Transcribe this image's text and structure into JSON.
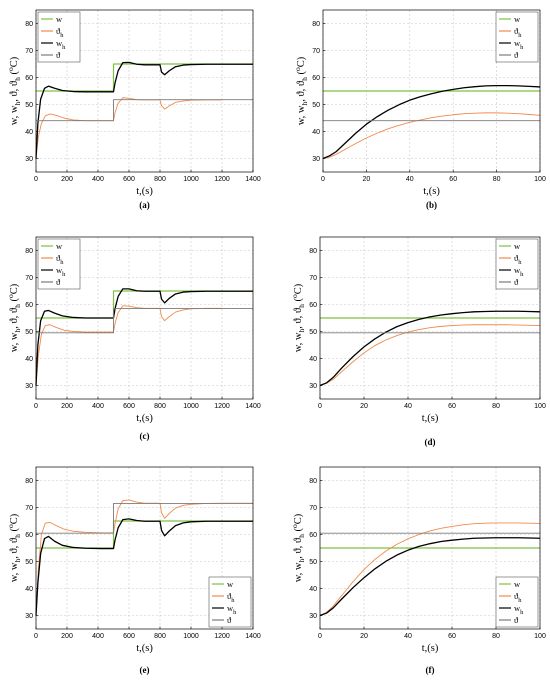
{
  "colors": {
    "w": "#7dc242",
    "theta_h": "#f08a4b",
    "w_h": "#000000",
    "theta": "#7a7a7a",
    "grid": "#c8c8c8"
  },
  "legend_labels": [
    "w",
    "ϑ",
    "w",
    "ϑ"
  ],
  "legend_subscripts": [
    "",
    "h",
    "h",
    ""
  ],
  "ylabel_parts": [
    "w, w",
    "h",
    ", ϑ, ϑ",
    "h",
    " (",
    "o",
    "C)"
  ],
  "chart_data": [
    {
      "id": "a",
      "caption": "(a)",
      "type": "line",
      "xlabel": "t,(s)",
      "xlim": [
        0,
        1400
      ],
      "ylim": [
        25,
        85
      ],
      "xticks": [
        0,
        200,
        400,
        600,
        800,
        1000,
        1200,
        1400
      ],
      "yticks": [
        30,
        40,
        50,
        60,
        70,
        80
      ],
      "legend": "top-left",
      "series": [
        {
          "key": "w",
          "x": [
            0,
            500,
            500,
            1400
          ],
          "y": [
            55,
            55,
            65,
            65
          ]
        },
        {
          "key": "theta_h",
          "x": [
            0,
            15,
            35,
            60,
            90,
            130,
            180,
            240,
            320,
            420,
            500,
            510,
            530,
            560,
            600,
            650,
            700,
            800,
            810,
            830,
            860,
            900,
            950,
            1000,
            1100,
            1200
          ],
          "y": [
            30,
            38,
            43,
            45.8,
            46.5,
            46,
            45,
            44.3,
            44,
            44,
            44,
            47,
            50.5,
            52.5,
            52.3,
            51.8,
            51.7,
            51.7,
            49.5,
            48.3,
            49.5,
            50.8,
            51.3,
            51.6,
            51.7,
            51.7
          ]
        },
        {
          "key": "w_h",
          "x": [
            0,
            12,
            30,
            55,
            80,
            120,
            170,
            240,
            320,
            420,
            500,
            510,
            530,
            560,
            600,
            650,
            700,
            800,
            810,
            830,
            860,
            900,
            950,
            1000,
            1100,
            1200,
            1400
          ],
          "y": [
            30,
            43,
            52,
            56,
            56.8,
            56,
            55.2,
            54.8,
            54.7,
            54.7,
            54.7,
            58,
            62.5,
            65.5,
            65.6,
            64.9,
            64.7,
            64.7,
            62,
            61,
            62.5,
            64,
            64.6,
            64.8,
            64.9,
            64.9,
            64.9
          ]
        },
        {
          "key": "theta",
          "x": [
            0,
            500,
            500,
            1400
          ],
          "y": [
            44,
            44,
            51.8,
            51.8
          ]
        }
      ]
    },
    {
      "id": "b",
      "caption": "(b)",
      "type": "line",
      "xlabel": "t,(s)",
      "xlim": [
        0,
        100
      ],
      "ylim": [
        25,
        85
      ],
      "xticks": [
        0,
        20,
        40,
        60,
        80,
        100
      ],
      "yticks": [
        30,
        40,
        50,
        60,
        70,
        80
      ],
      "legend": "top-right",
      "series": [
        {
          "key": "w",
          "x": [
            0,
            100
          ],
          "y": [
            55,
            55
          ]
        },
        {
          "key": "theta_h",
          "x": [
            0,
            3,
            6,
            10,
            15,
            20,
            25,
            30,
            35,
            40,
            45,
            50,
            55,
            60,
            65,
            70,
            75,
            80,
            85,
            90,
            95,
            100
          ],
          "y": [
            30,
            30.5,
            31.5,
            33.3,
            35.5,
            37.6,
            39.4,
            41,
            42.3,
            43.4,
            44.3,
            45.1,
            45.7,
            46.2,
            46.6,
            46.8,
            46.9,
            46.9,
            46.8,
            46.6,
            46.3,
            46
          ]
        },
        {
          "key": "w_h",
          "x": [
            0,
            3,
            6,
            10,
            15,
            20,
            25,
            30,
            35,
            40,
            45,
            50,
            55,
            60,
            65,
            70,
            75,
            80,
            85,
            90,
            95,
            100
          ],
          "y": [
            30,
            31,
            32.5,
            35.5,
            39.3,
            42.7,
            45.5,
            47.9,
            49.9,
            51.6,
            52.9,
            54,
            54.9,
            55.6,
            56.2,
            56.6,
            56.9,
            57,
            57,
            56.9,
            56.7,
            56.5
          ]
        },
        {
          "key": "theta",
          "x": [
            0,
            100
          ],
          "y": [
            44,
            44
          ]
        }
      ]
    },
    {
      "id": "c",
      "caption": "(c)",
      "type": "line",
      "xlabel": "t,(s)",
      "xlim": [
        0,
        1400
      ],
      "ylim": [
        25,
        85
      ],
      "xticks": [
        0,
        200,
        400,
        600,
        800,
        1000,
        1200,
        1400
      ],
      "yticks": [
        30,
        40,
        50,
        60,
        70,
        80
      ],
      "legend": "top-left",
      "series": [
        {
          "key": "w",
          "x": [
            0,
            500,
            500,
            1400
          ],
          "y": [
            55,
            55,
            65,
            65
          ]
        },
        {
          "key": "theta_h",
          "x": [
            0,
            15,
            35,
            60,
            90,
            130,
            180,
            240,
            320,
            420,
            500,
            510,
            530,
            560,
            600,
            650,
            700,
            800,
            810,
            830,
            860,
            900,
            950,
            1000,
            1100,
            1200
          ],
          "y": [
            30,
            41,
            49,
            52.2,
            52.5,
            51.5,
            50.5,
            50,
            49.8,
            49.8,
            49.8,
            53,
            57,
            59.5,
            59.4,
            58.8,
            58.6,
            58.6,
            55.5,
            54,
            55.5,
            57.2,
            58,
            58.4,
            58.6,
            58.6
          ]
        },
        {
          "key": "w_h",
          "x": [
            0,
            12,
            30,
            55,
            80,
            120,
            170,
            240,
            320,
            420,
            500,
            510,
            530,
            560,
            600,
            650,
            700,
            800,
            810,
            830,
            860,
            900,
            950,
            1000,
            1100,
            1200,
            1400
          ],
          "y": [
            30,
            45,
            54,
            57.5,
            57.8,
            56.8,
            55.8,
            55.2,
            55,
            55,
            55,
            58.5,
            63,
            65.8,
            65.8,
            65.1,
            64.9,
            64.9,
            62,
            60.6,
            62.3,
            63.9,
            64.6,
            64.8,
            64.9,
            64.9,
            64.9
          ]
        },
        {
          "key": "theta",
          "x": [
            0,
            500,
            500,
            1400
          ],
          "y": [
            49.5,
            49.5,
            58.5,
            58.5
          ]
        }
      ]
    },
    {
      "id": "d",
      "caption": "(d)",
      "type": "line",
      "xlabel": "t,(s)",
      "xlim": [
        0,
        100
      ],
      "ylim": [
        25,
        85
      ],
      "xticks": [
        0,
        20,
        40,
        60,
        80,
        100
      ],
      "yticks": [
        30,
        40,
        50,
        60,
        70,
        80
      ],
      "legend": "top-right",
      "series": [
        {
          "key": "w",
          "x": [
            0,
            100
          ],
          "y": [
            55,
            55
          ]
        },
        {
          "key": "theta_h",
          "x": [
            0,
            3,
            6,
            10,
            15,
            20,
            25,
            30,
            35,
            40,
            45,
            50,
            55,
            60,
            65,
            70,
            75,
            80,
            85,
            90,
            95,
            100
          ],
          "y": [
            30,
            30.8,
            32.3,
            35.2,
            38.8,
            42.1,
            44.8,
            46.9,
            48.5,
            49.8,
            50.7,
            51.4,
            51.9,
            52.2,
            52.4,
            52.5,
            52.5,
            52.5,
            52.5,
            52.4,
            52.3,
            52.2
          ]
        },
        {
          "key": "w_h",
          "x": [
            0,
            3,
            6,
            10,
            15,
            20,
            25,
            30,
            35,
            40,
            45,
            50,
            55,
            60,
            65,
            70,
            75,
            80,
            85,
            90,
            95,
            100
          ],
          "y": [
            30,
            31,
            33,
            36.6,
            40.7,
            44.3,
            47.3,
            49.8,
            51.8,
            53.3,
            54.5,
            55.4,
            56.1,
            56.6,
            57,
            57.3,
            57.4,
            57.5,
            57.5,
            57.5,
            57.4,
            57.3
          ]
        },
        {
          "key": "theta",
          "x": [
            0,
            100
          ],
          "y": [
            49.5,
            49.5
          ]
        }
      ]
    },
    {
      "id": "e",
      "caption": "(e)",
      "type": "line",
      "xlabel": "t,(s)",
      "xlim": [
        0,
        1400
      ],
      "ylim": [
        25,
        85
      ],
      "xticks": [
        0,
        200,
        400,
        600,
        800,
        1000,
        1200,
        1400
      ],
      "yticks": [
        30,
        40,
        50,
        60,
        70,
        80
      ],
      "legend": "bottom-right",
      "series": [
        {
          "key": "w",
          "x": [
            0,
            500,
            500,
            1400
          ],
          "y": [
            55,
            55,
            65,
            65
          ]
        },
        {
          "key": "theta_h",
          "x": [
            0,
            15,
            35,
            60,
            90,
            130,
            180,
            240,
            320,
            420,
            500,
            510,
            530,
            560,
            600,
            650,
            700,
            800,
            810,
            830,
            860,
            900,
            950,
            1000,
            1100,
            1200,
            1400
          ],
          "y": [
            30,
            47,
            60,
            64.2,
            64.5,
            63.3,
            62,
            61.2,
            60.8,
            60.6,
            60.6,
            64,
            69.5,
            72.5,
            72.8,
            72,
            71.6,
            71.6,
            68,
            66,
            67.8,
            69.8,
            70.8,
            71.2,
            71.5,
            71.6,
            71.6
          ]
        },
        {
          "key": "w_h",
          "x": [
            0,
            12,
            30,
            55,
            80,
            120,
            170,
            240,
            320,
            420,
            500,
            510,
            530,
            560,
            600,
            650,
            700,
            800,
            810,
            830,
            860,
            900,
            950,
            1000,
            1100,
            1200,
            1400
          ],
          "y": [
            30,
            42,
            53,
            58.5,
            59.3,
            57.5,
            56,
            55.2,
            54.9,
            54.8,
            54.8,
            58,
            62.5,
            65.5,
            65.8,
            65.2,
            64.9,
            64.9,
            61.5,
            59.5,
            61.3,
            63.3,
            64.3,
            64.7,
            64.9,
            64.9,
            64.9
          ]
        },
        {
          "key": "theta",
          "x": [
            0,
            500,
            500,
            1400
          ],
          "y": [
            60.5,
            60.5,
            71.5,
            71.5
          ]
        }
      ]
    },
    {
      "id": "f",
      "caption": "(f)",
      "type": "line",
      "xlabel": "t,(s)",
      "xlim": [
        0,
        100
      ],
      "ylim": [
        25,
        85
      ],
      "xticks": [
        0,
        20,
        40,
        60,
        80,
        100
      ],
      "yticks": [
        30,
        40,
        50,
        60,
        70,
        80
      ],
      "legend": "bottom-right",
      "series": [
        {
          "key": "w",
          "x": [
            0,
            100
          ],
          "y": [
            55,
            55
          ]
        },
        {
          "key": "theta_h",
          "x": [
            0,
            3,
            6,
            10,
            15,
            20,
            25,
            30,
            35,
            40,
            45,
            50,
            55,
            60,
            65,
            70,
            75,
            80,
            85,
            90,
            95,
            100
          ],
          "y": [
            30,
            31.2,
            33.5,
            37.5,
            42.5,
            47,
            50.8,
            53.9,
            56.4,
            58.4,
            60,
            61.3,
            62.3,
            63,
            63.6,
            64,
            64.2,
            64.3,
            64.3,
            64.3,
            64.2,
            64.1
          ]
        },
        {
          "key": "w_h",
          "x": [
            0,
            3,
            6,
            10,
            15,
            20,
            25,
            30,
            35,
            40,
            45,
            50,
            55,
            60,
            65,
            70,
            75,
            80,
            85,
            90,
            95,
            100
          ],
          "y": [
            30,
            30.9,
            32.8,
            36.2,
            40.3,
            44,
            47.3,
            50.1,
            52.4,
            54.2,
            55.6,
            56.6,
            57.4,
            57.9,
            58.3,
            58.6,
            58.7,
            58.8,
            58.8,
            58.8,
            58.7,
            58.6
          ]
        },
        {
          "key": "theta",
          "x": [
            0,
            100
          ],
          "y": [
            60.5,
            60.5
          ]
        }
      ]
    }
  ]
}
